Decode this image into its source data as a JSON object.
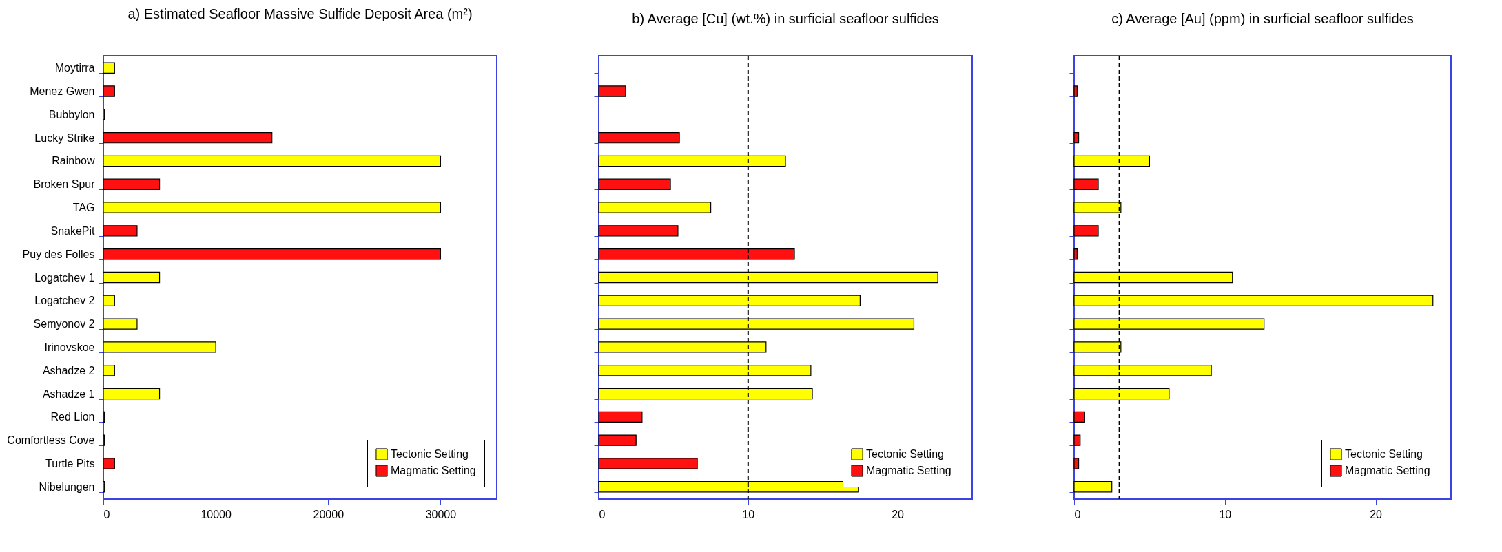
{
  "chart_data": [
    {
      "type": "bar",
      "orientation": "horizontal",
      "stacked": true,
      "title": "a) Estimated Seafloor Massive Sulfide Deposit Area (m²)",
      "categories": [
        "Moytirra",
        "Menez Gwen",
        "Bubbylon",
        "Lucky Strike",
        "Rainbow",
        "Broken Spur",
        "TAG",
        "SnakePit",
        "Puy des Folles",
        "Logatchev 1",
        "Logatchev 2",
        "Semyonov 2",
        "Irinovskoe",
        "Ashadze 2",
        "Ashadze 1",
        "Red Lion",
        "Comfortless Cove",
        "Turtle Pits",
        "Nibelungen"
      ],
      "series": [
        {
          "name": "Tectonic Setting",
          "color": "#ffff00",
          "values": [
            1000,
            null,
            100,
            null,
            30000,
            null,
            30000,
            null,
            null,
            5000,
            1000,
            3000,
            10000,
            1000,
            5000,
            null,
            null,
            null,
            100
          ]
        },
        {
          "name": "Magmatic Setting",
          "color": "#ff1111",
          "values": [
            null,
            1000,
            null,
            15000,
            null,
            5000,
            null,
            3000,
            30000,
            null,
            null,
            null,
            null,
            null,
            null,
            100,
            100,
            1000,
            null
          ]
        }
      ],
      "xlim": [
        0,
        35000
      ],
      "xticks": [
        0,
        10000,
        20000,
        30000
      ],
      "legend": "bottom right"
    },
    {
      "type": "bar",
      "orientation": "horizontal",
      "stacked": true,
      "title": "b) Average [Cu] (wt.%) in surficial seafloor sulfides",
      "categories": [
        null,
        null,
        null,
        null,
        null,
        null,
        null,
        null,
        null,
        null,
        null,
        null,
        null,
        null,
        null,
        null,
        null,
        null,
        null
      ],
      "series": [
        {
          "name": "Tectonic Setting",
          "color": "#ffff00",
          "values": [
            null,
            null,
            null,
            null,
            12.5,
            null,
            7.5,
            null,
            null,
            22.7,
            17.5,
            21.1,
            11.2,
            14.2,
            14.3,
            null,
            null,
            null,
            17.4
          ]
        },
        {
          "name": "Magmatic Setting",
          "color": "#ff1111",
          "values": [
            null,
            1.8,
            null,
            5.4,
            null,
            4.8,
            null,
            5.3,
            13.1,
            null,
            null,
            null,
            null,
            null,
            null,
            2.9,
            2.5,
            6.6,
            null
          ]
        }
      ],
      "xlim": [
        0,
        25
      ],
      "xticks": [
        0,
        10,
        20
      ],
      "tick_labels": "x",
      "legend": "bottom right",
      "ref_lines": [
        {
          "axis": "x",
          "value": 10,
          "line_style": "dashed"
        }
      ]
    },
    {
      "type": "bar",
      "orientation": "horizontal",
      "stacked": true,
      "title": "c) Average [Au] (ppm) in surficial seafloor sulfides",
      "categories": [
        null,
        null,
        null,
        null,
        null,
        null,
        null,
        null,
        null,
        null,
        null,
        null,
        null,
        null,
        null,
        null,
        null,
        null,
        null
      ],
      "series": [
        {
          "name": "Tectonic Setting",
          "color": "#ffff00",
          "values": [
            null,
            null,
            null,
            null,
            5.0,
            null,
            3.1,
            null,
            null,
            10.5,
            23.8,
            12.6,
            3.1,
            9.1,
            6.3,
            null,
            null,
            null,
            2.5
          ]
        },
        {
          "name": "Magmatic Setting",
          "color": "#ff1111",
          "values": [
            null,
            0.2,
            null,
            0.3,
            null,
            1.6,
            null,
            1.6,
            0.2,
            null,
            null,
            null,
            null,
            null,
            null,
            0.7,
            0.4,
            0.3,
            null
          ]
        }
      ],
      "xlim": [
        0,
        25
      ],
      "xticks": [
        0,
        10,
        20
      ],
      "tick_labels": "x",
      "legend": "bottom right",
      "ref_lines": [
        {
          "axis": "x",
          "value": 3,
          "line_style": "dashed"
        }
      ]
    }
  ]
}
